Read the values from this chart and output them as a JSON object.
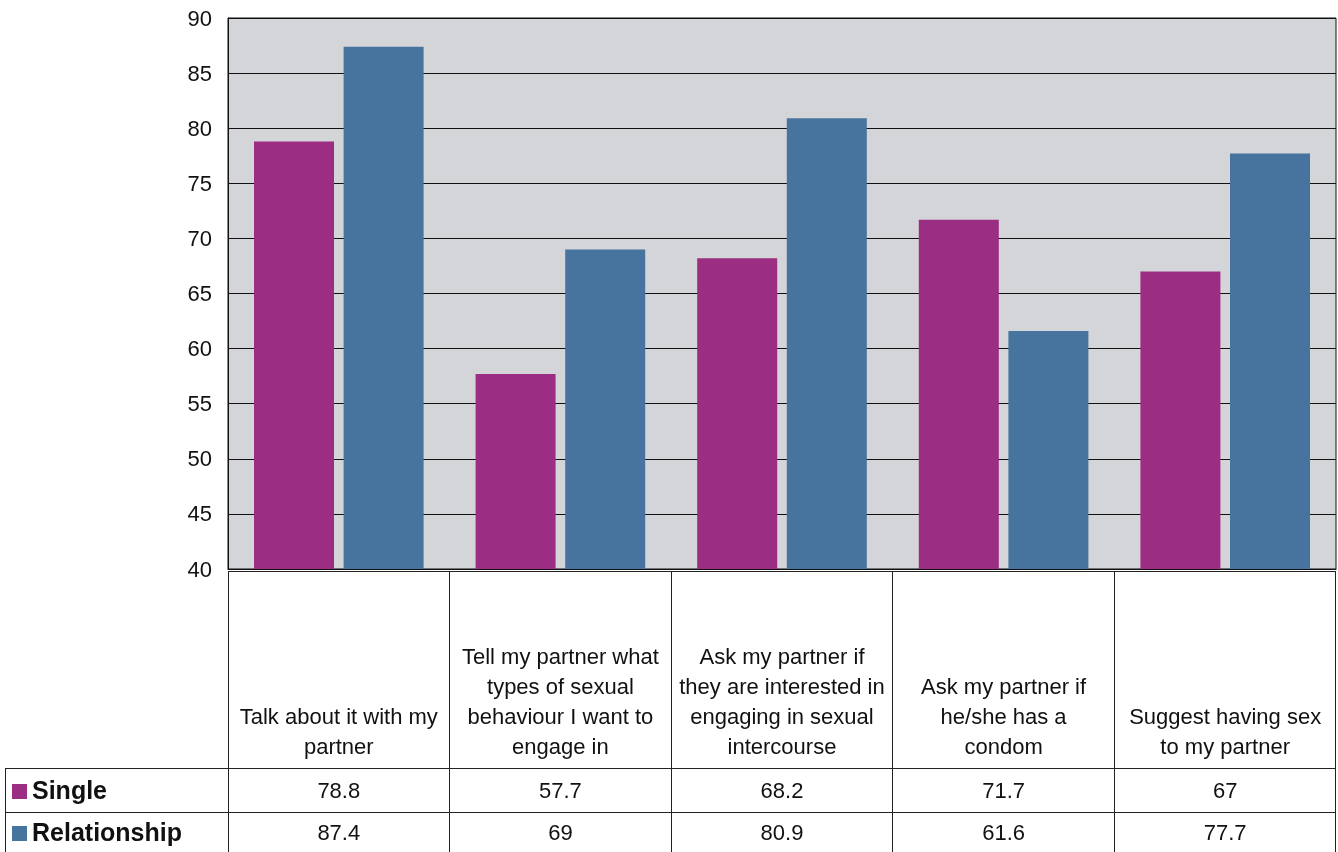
{
  "chart_data": {
    "type": "bar",
    "categories": [
      "Talk about it with my partner",
      "Tell my partner what types of sexual behaviour I want to engage in",
      "Ask my partner if they are interested in engaging in sexual intercourse",
      "Ask my partner if he/she has a condom",
      "Suggest having sex to my partner"
    ],
    "series": [
      {
        "name": "Single",
        "color": "#9b2d82",
        "values": [
          78.8,
          57.7,
          68.2,
          71.7,
          67
        ]
      },
      {
        "name": "Relationship",
        "color": "#47739f",
        "values": [
          87.4,
          69,
          80.9,
          61.6,
          77.7
        ]
      }
    ],
    "ylim": [
      40,
      90
    ],
    "yticks": [
      40,
      45,
      50,
      55,
      60,
      65,
      70,
      75,
      80,
      85,
      90
    ],
    "grid": "y",
    "legend": "bottom",
    "data_labels": true
  }
}
